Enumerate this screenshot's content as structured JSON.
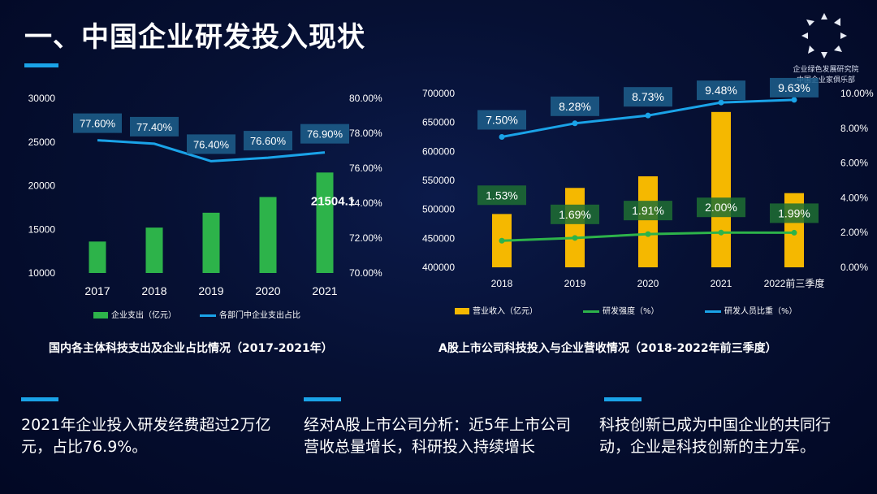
{
  "title": "一、中国企业研发投入现状",
  "logo": {
    "line1": "企业绿色发展研究院",
    "line2": "中国企业家俱乐部"
  },
  "captions": {
    "left": "国内各主体科技支出及企业占比情况（2017-2021年）",
    "right": "A股上市公司科技投入与企业营收情况（2018-2022年前三季度）"
  },
  "notes": [
    "2021年企业投入研发经费超过2万亿元，占比76.9%。",
    "经对A股上市公司分析：近5年上市公司营收总量增长，科研投入持续增长",
    "科技创新已成为中国企业的共同行动，企业是科技创新的主力军。"
  ],
  "chart_data": [
    {
      "type": "bar",
      "categories": [
        "2017",
        "2018",
        "2019",
        "2020",
        "2021"
      ],
      "series": [
        {
          "name": "企业支出（亿元）",
          "type": "bar",
          "axis": "left",
          "values": [
            13600,
            15200,
            16900,
            18700,
            21504.1
          ],
          "color": "#2db34a",
          "labels": [
            "",
            "",
            "",
            "",
            "21504.1"
          ]
        },
        {
          "name": "各部门中企业支出占比",
          "type": "line",
          "axis": "right",
          "values": [
            77.6,
            77.4,
            76.4,
            76.6,
            76.9
          ],
          "color": "#1aa3e8",
          "labels": [
            "77.60%",
            "77.40%",
            "76.40%",
            "76.60%",
            "76.90%"
          ]
        }
      ],
      "left_axis": {
        "min": 10000,
        "max": 30000,
        "ticks": [
          "30000",
          "25000",
          "20000",
          "15000",
          "10000"
        ]
      },
      "right_axis": {
        "min": 70,
        "max": 80,
        "ticks": [
          "80.00%",
          "78.00%",
          "76.00%",
          "74.00%",
          "72.00%",
          "70.00%"
        ]
      },
      "legend_placement": "bottom"
    },
    {
      "type": "bar",
      "categories": [
        "2018",
        "2019",
        "2020",
        "2021",
        "2022前三季度"
      ],
      "series": [
        {
          "name": "营业收入（亿元）",
          "type": "bar",
          "axis": "left",
          "values": [
            492000,
            537000,
            557000,
            668000,
            528000
          ],
          "color": "#f5b800"
        },
        {
          "name": "研发强度（%）",
          "type": "line",
          "axis": "right",
          "values": [
            1.53,
            1.69,
            1.91,
            2.0,
            1.99
          ],
          "color": "#2db34a",
          "labels": [
            "1.53%",
            "1.69%",
            "1.91%",
            "2.00%",
            "1.99%"
          ]
        },
        {
          "name": "研发人员比重（%）",
          "type": "line",
          "axis": "right",
          "values": [
            7.5,
            8.28,
            8.73,
            9.48,
            9.63
          ],
          "color": "#1aa3e8",
          "labels": [
            "7.50%",
            "8.28%",
            "8.73%",
            "9.48%",
            "9.63%"
          ]
        }
      ],
      "left_axis": {
        "min": 400000,
        "max": 700000,
        "ticks": [
          "700000",
          "650000",
          "600000",
          "550000",
          "500000",
          "450000",
          "400000"
        ]
      },
      "right_axis": {
        "min": 0,
        "max": 10,
        "ticks": [
          "10.00%",
          "8.00%",
          "6.00%",
          "4.00%",
          "2.00%",
          "0.00%"
        ]
      },
      "legend_placement": "bottom"
    }
  ]
}
